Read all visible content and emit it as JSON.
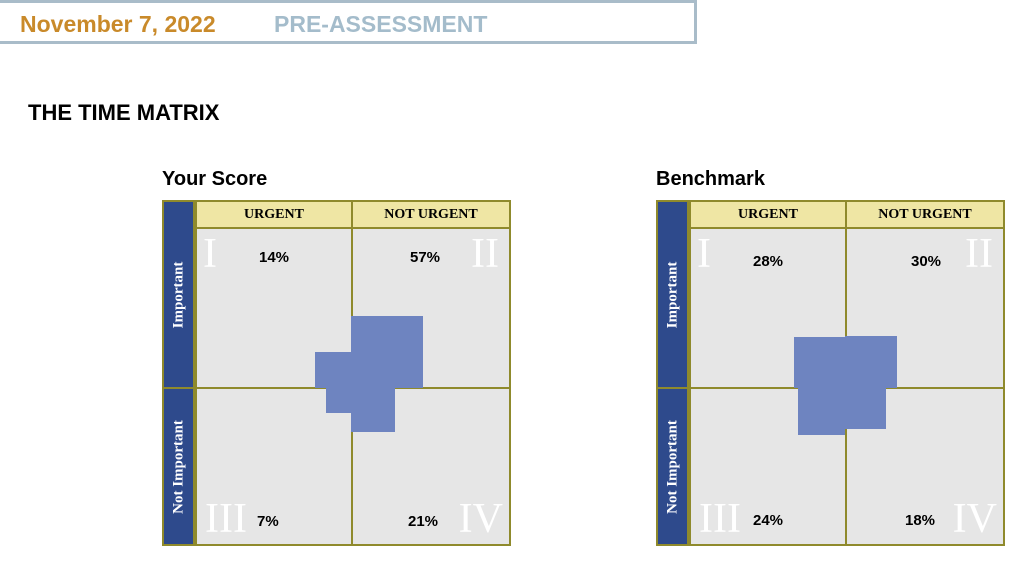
{
  "header": {
    "date": "November 7, 2022",
    "title": "PRE-ASSESSMENT"
  },
  "page_title": "THE TIME MATRIX",
  "axes": {
    "columns": [
      "URGENT",
      "NOT URGENT"
    ],
    "rows": [
      "Important",
      "Not Important"
    ],
    "quadrant_numerals": [
      "I",
      "II",
      "III",
      "IV"
    ]
  },
  "matrices": [
    {
      "title": "Your Score",
      "labels": [
        "14%",
        "57%",
        "7%",
        "21%"
      ]
    },
    {
      "title": "Benchmark",
      "labels": [
        "28%",
        "30%",
        "24%",
        "18%"
      ]
    }
  ],
  "colors": {
    "header_date": "#c98a2a",
    "header_title": "#a4bccb",
    "row_header": "#2e4a8c",
    "col_header": "#efe6a4",
    "quadrant": "#e6e6e6",
    "bar": "#6e84c0"
  },
  "chart_data": [
    {
      "type": "heatmap",
      "title": "Your Score",
      "categories": [
        "I",
        "II",
        "III",
        "IV"
      ],
      "x": [
        "URGENT",
        "NOT URGENT"
      ],
      "y": [
        "Important",
        "Not Important"
      ],
      "values": [
        14,
        57,
        7,
        21
      ]
    },
    {
      "type": "heatmap",
      "title": "Benchmark",
      "categories": [
        "I",
        "II",
        "III",
        "IV"
      ],
      "x": [
        "URGENT",
        "NOT URGENT"
      ],
      "y": [
        "Important",
        "Not Important"
      ],
      "values": [
        28,
        30,
        24,
        18
      ]
    }
  ]
}
